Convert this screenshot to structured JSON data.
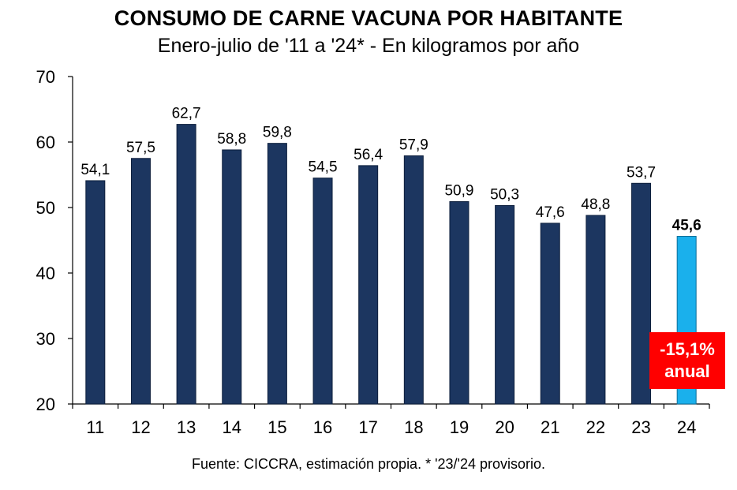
{
  "title": "CONSUMO DE CARNE VACUNA POR HABITANTE",
  "subtitle": "Enero-julio de '11 a '24* - En kilogramos por año",
  "source": "Fuente: CICCRA, estimación propia. * '23/'24 provisorio.",
  "callout": {
    "line1": "-15,1%",
    "line2": "anual",
    "color": "#ff0000"
  },
  "chart_data": {
    "type": "bar",
    "title": "CONSUMO DE CARNE VACUNA POR HABITANTE",
    "subtitle": "Enero-julio de '11 a '24* - En kilogramos por año",
    "categories": [
      "11",
      "12",
      "13",
      "14",
      "15",
      "16",
      "17",
      "18",
      "19",
      "20",
      "21",
      "22",
      "23",
      "24"
    ],
    "values": [
      54.1,
      57.5,
      62.7,
      58.8,
      59.8,
      54.5,
      56.4,
      57.9,
      50.9,
      50.3,
      47.6,
      48.8,
      53.7,
      45.6
    ],
    "data_labels": [
      "54,1",
      "57,5",
      "62,7",
      "58,8",
      "59,8",
      "54,5",
      "56,4",
      "57,9",
      "50,9",
      "50,3",
      "47,6",
      "48,8",
      "53,7",
      "45,6"
    ],
    "yticks": [
      "20",
      "30",
      "40",
      "50",
      "60",
      "70"
    ],
    "ylim": [
      20,
      70
    ],
    "grid": false,
    "legend": "none",
    "colors": {
      "bar": "#1c3660",
      "highlight": "#1ab0ec"
    },
    "highlight_index": 13
  }
}
